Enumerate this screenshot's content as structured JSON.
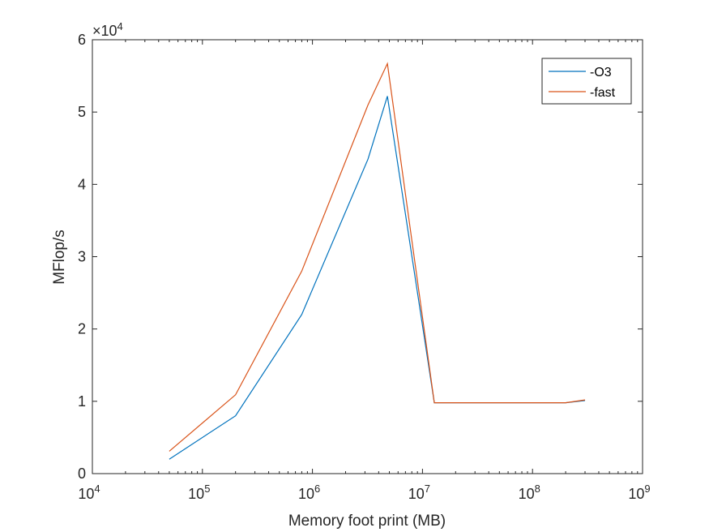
{
  "chart_data": {
    "type": "line",
    "xlabel": "Memory foot print (MB)",
    "ylabel": "MFlop/s",
    "x_scale": "log",
    "xlim": [
      10000,
      1000000000
    ],
    "ylim": [
      0,
      60000
    ],
    "y_exponent_label": "×10^4",
    "x_tick_labels": [
      {
        "value": 10000,
        "base": "10",
        "exp": "4"
      },
      {
        "value": 100000,
        "base": "10",
        "exp": "5"
      },
      {
        "value": 1000000,
        "base": "10",
        "exp": "6"
      },
      {
        "value": 10000000,
        "base": "10",
        "exp": "7"
      },
      {
        "value": 100000000,
        "base": "10",
        "exp": "8"
      },
      {
        "value": 1000000000,
        "base": "10",
        "exp": "9"
      }
    ],
    "y_tick_labels": [
      {
        "value": 0,
        "label": "0"
      },
      {
        "value": 10000,
        "label": "1"
      },
      {
        "value": 20000,
        "label": "2"
      },
      {
        "value": 30000,
        "label": "3"
      },
      {
        "value": 40000,
        "label": "4"
      },
      {
        "value": 50000,
        "label": "5"
      },
      {
        "value": 60000,
        "label": "6"
      }
    ],
    "grid": false,
    "legend_position": "top-right",
    "series": [
      {
        "name": "-O3",
        "color": "#0072BD",
        "x": [
          50000,
          200000,
          800000,
          3200000,
          4800000,
          12800000,
          200000000,
          300000000
        ],
        "y": [
          2000,
          8000,
          22000,
          43500,
          52200,
          9800,
          9800,
          10100
        ]
      },
      {
        "name": "-fast",
        "color": "#D95319",
        "x": [
          50000,
          200000,
          800000,
          3200000,
          4800000,
          12800000,
          200000000,
          300000000
        ],
        "y": [
          3100,
          10900,
          28000,
          51000,
          56700,
          9800,
          9800,
          10200
        ]
      }
    ]
  }
}
